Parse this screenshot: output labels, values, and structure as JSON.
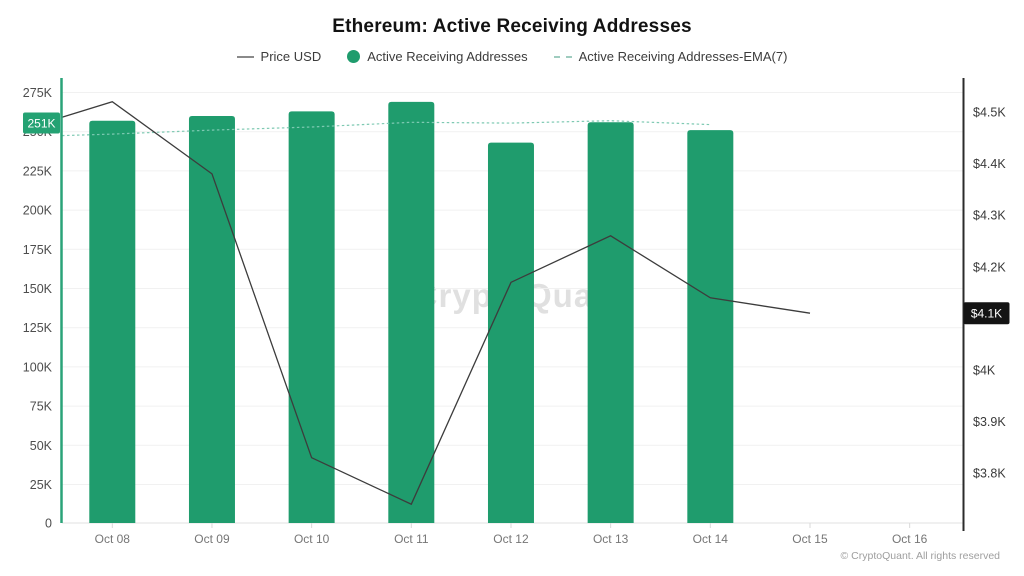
{
  "title": "Ethereum: Active Receiving Addresses",
  "legend": {
    "items": [
      {
        "label": "Price USD"
      },
      {
        "label": "Active Receiving Addresses"
      },
      {
        "label": "Active Receiving Addresses-EMA(7)"
      }
    ]
  },
  "watermark": "CryptoQuant",
  "footer": "© CryptoQuant. All rights reserved",
  "badges": {
    "left_value": "251K",
    "right_value": "$4.1K"
  },
  "colors": {
    "bar": "#1f9c6d",
    "price_line": "#3c3c3c",
    "ema_line": "#7ec9b2",
    "left_axis": "#2aa378",
    "right_axis": "#2b2b2b",
    "badge_left_bg": "#24a273",
    "badge_right_bg": "#141414",
    "badge_text": "#ffffff",
    "gridline": "#f1f1f1",
    "baseline": "#e2e2e2",
    "tick": "#d9d9d9"
  },
  "chart_data": {
    "type": "bar",
    "title": "Ethereum: Active Receiving Addresses",
    "legend_position": "top",
    "grid": "horizontal",
    "categories": [
      "Oct 08",
      "Oct 09",
      "Oct 10",
      "Oct 11",
      "Oct 12",
      "Oct 13",
      "Oct 14",
      "Oct 15",
      "Oct 16"
    ],
    "series": [
      {
        "name": "Active Receiving Addresses",
        "type": "bar",
        "axis": "left",
        "values": [
          257000,
          260000,
          263000,
          269000,
          243000,
          256000,
          251000,
          null,
          null
        ]
      },
      {
        "name": "Price USD",
        "type": "line",
        "axis": "right",
        "axis_edge_start": 4490,
        "values": [
          4520,
          4380,
          3830,
          3740,
          4170,
          4260,
          4140,
          4110,
          null
        ]
      },
      {
        "name": "Active Receiving Addresses-EMA(7)",
        "type": "line",
        "dash": true,
        "axis": "left",
        "axis_edge_start": 247500,
        "values": [
          248500,
          251000,
          253000,
          256000,
          255500,
          257000,
          254500,
          null,
          null
        ]
      }
    ],
    "left_axis": {
      "min": 0,
      "max": 275000,
      "tick_step": 25000,
      "tick_labels": [
        "0",
        "25K",
        "50K",
        "75K",
        "100K",
        "125K",
        "150K",
        "175K",
        "200K",
        "225K",
        "250K",
        "275K"
      ]
    },
    "right_axis": {
      "ticks": [
        {
          "label": "$4.5K",
          "value": 4500
        },
        {
          "label": "$4.4K",
          "value": 4400
        },
        {
          "label": "$4.3K",
          "value": 4300
        },
        {
          "label": "$4.2K",
          "value": 4200
        },
        {
          "label": "$4.1K",
          "value": 4100
        },
        {
          "label": "$4K",
          "value": 4000
        },
        {
          "label": "$3.9K",
          "value": 3900
        },
        {
          "label": "$3.8K",
          "value": 3800
        }
      ]
    },
    "annotations": {
      "latest_bar_badge": "251K",
      "latest_price_badge": "$4.1K"
    }
  }
}
